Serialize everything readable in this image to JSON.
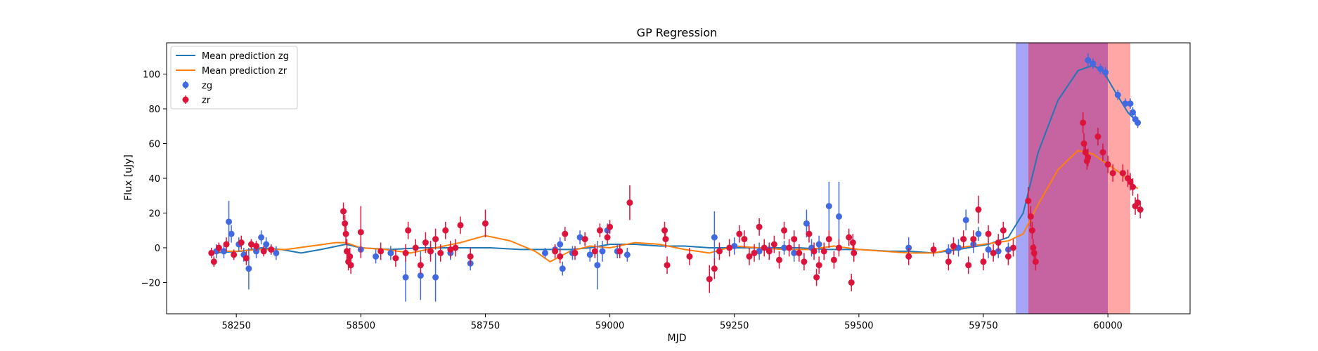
{
  "chart_data": {
    "type": "scatter",
    "title": "GP Regression",
    "xlabel": "MJD",
    "ylabel": "Flux [uJy]",
    "xlim": [
      58110,
      60165
    ],
    "ylim": [
      -38,
      118
    ],
    "xticks": [
      58250,
      58500,
      58750,
      59000,
      59250,
      59500,
      59750,
      60000
    ],
    "yticks": [
      -20,
      0,
      20,
      40,
      60,
      80,
      100
    ],
    "grid": false,
    "legend_position": "top-left",
    "colors": {
      "zg_points": "#4169e1",
      "zr_points": "#dc143c",
      "zg_line": "#1f77b4",
      "zr_line": "#ff7f0e"
    },
    "shaded_regions": [
      {
        "x0": 59815,
        "x1": 59840,
        "color": "#a6a6f8"
      },
      {
        "x0": 59840,
        "x1": 60000,
        "color": "#c564a0"
      },
      {
        "x0": 60000,
        "x1": 60045,
        "color": "#ffa7a7"
      }
    ],
    "series": [
      {
        "name": "Mean prediction zg",
        "kind": "line",
        "color": "#1f77b4",
        "x": [
          58200,
          58260,
          58300,
          58340,
          58380,
          58420,
          58470,
          58500,
          58560,
          58620,
          58700,
          58760,
          58820,
          58880,
          58920,
          58960,
          59000,
          59050,
          59100,
          59150,
          59200,
          59260,
          59320,
          59380,
          59440,
          59500,
          59560,
          59600,
          59650,
          59700,
          59760,
          59800,
          59830,
          59860,
          59900,
          59940,
          59970,
          59990,
          60010,
          60040,
          60060
        ],
        "y": [
          -3,
          -2,
          0,
          -1,
          -3,
          -1,
          2,
          0,
          -1,
          0,
          0,
          0,
          -1,
          -1,
          -1,
          0,
          2,
          2,
          1,
          1,
          0,
          0,
          0,
          0,
          -1,
          -1,
          -2,
          -2,
          -3,
          -1,
          2,
          6,
          20,
          55,
          85,
          102,
          105,
          102,
          92,
          78,
          72
        ]
      },
      {
        "name": "Mean prediction zr",
        "kind": "line",
        "color": "#ff7f0e",
        "x": [
          58200,
          58250,
          58300,
          58350,
          58400,
          58450,
          58470,
          58500,
          58550,
          58600,
          58650,
          58700,
          58750,
          58800,
          58850,
          58880,
          58920,
          58960,
          59000,
          59050,
          59100,
          59150,
          59200,
          59250,
          59300,
          59350,
          59400,
          59450,
          59500,
          59550,
          59600,
          59650,
          59700,
          59750,
          59800,
          59830,
          59860,
          59900,
          59940,
          59970,
          60000,
          60030,
          60060
        ],
        "y": [
          -2,
          -2,
          -1,
          -1,
          1,
          3,
          3,
          0,
          -1,
          -3,
          0,
          3,
          7,
          4,
          -2,
          -8,
          -2,
          1,
          0,
          3,
          2,
          -1,
          -3,
          1,
          0,
          -1,
          -1,
          1,
          -1,
          -2,
          -3,
          -3,
          0,
          2,
          4,
          8,
          25,
          45,
          56,
          54,
          48,
          42,
          34
        ]
      },
      {
        "name": "zg",
        "kind": "errorbar",
        "color": "#4169e1",
        "x": [
          58210,
          58225,
          58240,
          58235,
          58255,
          58265,
          58275,
          58290,
          58300,
          58310,
          58330,
          58500,
          58530,
          58560,
          58590,
          58620,
          58640,
          58650,
          58680,
          58720,
          58870,
          58890,
          58900,
          58905,
          58925,
          58940,
          58960,
          58975,
          58985,
          58995,
          59015,
          59035,
          59210,
          59250,
          59300,
          59320,
          59350,
          59370,
          59395,
          59405,
          59420,
          59440,
          59460,
          59600,
          59680,
          59700,
          59715,
          59730,
          59740,
          59760,
          59780,
          59800,
          59960,
          59970,
          59985,
          59995,
          60020,
          60035,
          60045,
          60050,
          60055,
          60060
        ],
        "y": [
          -2,
          -2,
          8,
          15,
          2,
          -4,
          -12,
          -2,
          6,
          2,
          -3,
          -1,
          -5,
          -3,
          -17,
          -16,
          -2,
          -17,
          -3,
          -9,
          -3,
          -1,
          2,
          -12,
          -3,
          6,
          -4,
          -10,
          -2,
          10,
          -2,
          -4,
          6,
          1,
          -2,
          -1,
          0,
          -3,
          14,
          0,
          2,
          24,
          18,
          0,
          -2,
          0,
          16,
          2,
          8,
          -1,
          -2,
          -1,
          108,
          106,
          103,
          101,
          88,
          83,
          83,
          78,
          74,
          72
        ],
        "yerr": [
          4,
          4,
          5,
          12,
          4,
          4,
          12,
          4,
          4,
          4,
          4,
          4,
          4,
          4,
          14,
          14,
          4,
          14,
          4,
          4,
          3,
          3,
          4,
          4,
          4,
          4,
          4,
          14,
          6,
          4,
          4,
          4,
          15,
          5,
          5,
          4,
          4,
          5,
          8,
          5,
          5,
          14,
          20,
          6,
          4,
          5,
          6,
          5,
          4,
          5,
          4,
          4,
          4,
          3,
          3,
          3,
          3,
          3,
          3,
          3,
          3,
          3
        ],
        "marker": "circle"
      },
      {
        "name": "zr",
        "kind": "errorbar",
        "color": "#dc143c",
        "x": [
          58200,
          58205,
          58215,
          58230,
          58245,
          58260,
          58270,
          58280,
          58290,
          58305,
          58320,
          58465,
          58468,
          58470,
          58472,
          58475,
          58478,
          58480,
          58500,
          58540,
          58570,
          58590,
          58595,
          58610,
          58620,
          58630,
          58640,
          58650,
          58660,
          58670,
          58680,
          58690,
          58700,
          58720,
          58750,
          58890,
          58900,
          58910,
          58930,
          58950,
          58970,
          58980,
          58995,
          59000,
          59020,
          59040,
          59110,
          59112,
          59115,
          59160,
          59200,
          59210,
          59220,
          59240,
          59260,
          59270,
          59280,
          59290,
          59300,
          59310,
          59320,
          59330,
          59340,
          59350,
          59360,
          59370,
          59380,
          59390,
          59400,
          59410,
          59415,
          59420,
          59430,
          59440,
          59450,
          59460,
          59480,
          59485,
          59488,
          59490,
          59600,
          59650,
          59680,
          59690,
          59710,
          59720,
          59730,
          59740,
          59750,
          59760,
          59770,
          59780,
          59790,
          59800,
          59810,
          59840,
          59845,
          59848,
          59850,
          59852,
          59855,
          59950,
          59952,
          59955,
          59958,
          59960,
          59980,
          59990,
          60000,
          60010,
          60030,
          60040,
          60045,
          60050,
          60055,
          60060,
          60065
        ],
        "y": [
          -3,
          -8,
          0,
          2,
          -4,
          3,
          -6,
          2,
          1,
          -2,
          -1,
          21,
          14,
          8,
          -2,
          -8,
          -5,
          -10,
          9,
          -2,
          -6,
          -3,
          10,
          0,
          -10,
          3,
          -2,
          5,
          -3,
          10,
          -1,
          0,
          13,
          -5,
          14,
          -2,
          -5,
          8,
          -3,
          5,
          -2,
          10,
          6,
          12,
          -2,
          26,
          10,
          5,
          -10,
          -5,
          -18,
          -12,
          -2,
          0,
          8,
          5,
          -5,
          -3,
          12,
          0,
          -2,
          2,
          -7,
          10,
          0,
          5,
          -3,
          -8,
          8,
          -2,
          -17,
          -10,
          -2,
          5,
          -7,
          0,
          6,
          -20,
          3,
          -3,
          -5,
          -1,
          -8,
          1,
          5,
          -10,
          5,
          22,
          -8,
          8,
          -3,
          3,
          10,
          -5,
          0,
          27,
          18,
          10,
          0,
          -3,
          -8,
          72,
          60,
          55,
          50,
          52,
          64,
          55,
          48,
          43,
          43,
          40,
          38,
          35,
          24,
          26,
          22
        ],
        "yerr": [
          3,
          3,
          3,
          4,
          3,
          4,
          4,
          3,
          3,
          3,
          3,
          5,
          5,
          6,
          7,
          5,
          5,
          5,
          15,
          5,
          5,
          5,
          5,
          5,
          5,
          6,
          6,
          6,
          5,
          5,
          5,
          5,
          5,
          5,
          8,
          4,
          4,
          4,
          4,
          4,
          4,
          4,
          4,
          4,
          4,
          10,
          5,
          5,
          5,
          5,
          8,
          6,
          5,
          5,
          5,
          5,
          5,
          5,
          5,
          5,
          5,
          5,
          5,
          5,
          5,
          5,
          5,
          5,
          5,
          5,
          5,
          5,
          5,
          5,
          5,
          5,
          5,
          5,
          5,
          5,
          5,
          4,
          5,
          5,
          5,
          5,
          5,
          8,
          5,
          5,
          5,
          5,
          5,
          5,
          5,
          8,
          6,
          5,
          5,
          5,
          5,
          6,
          6,
          5,
          5,
          5,
          5,
          5,
          5,
          5,
          5,
          5,
          5,
          5,
          5,
          5,
          5
        ],
        "marker": "circle"
      }
    ]
  }
}
